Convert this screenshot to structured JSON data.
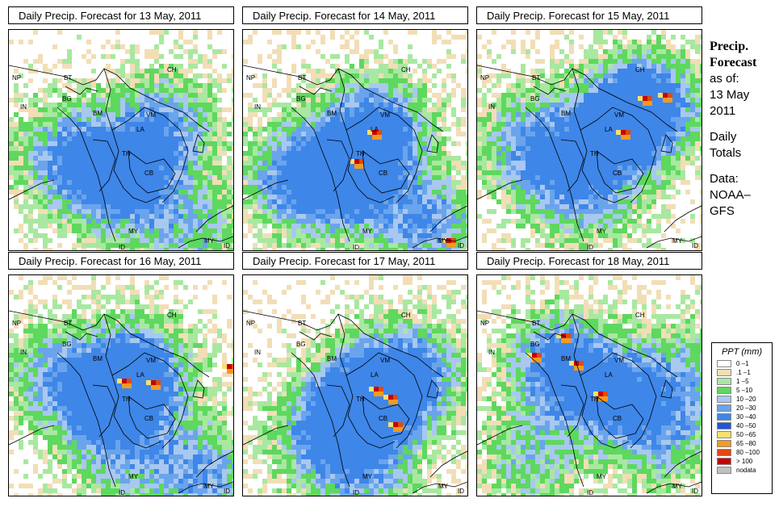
{
  "panels": [
    {
      "title": "Daily Precip. Forecast for  13 May, 2011",
      "date": "13 May, 2011"
    },
    {
      "title": "Daily Precip. Forecast for  14 May, 2011",
      "date": "14 May, 2011"
    },
    {
      "title": "Daily Precip. Forecast for  15 May, 2011",
      "date": "15 May, 2011"
    },
    {
      "title": "Daily Precip. Forecast for  16 May, 2011",
      "date": "16 May, 2011"
    },
    {
      "title": "Daily Precip. Forecast for  17 May, 2011",
      "date": "17 May, 2011"
    },
    {
      "title": "Daily Precip. Forecast for  18 May, 2011",
      "date": "18 May, 2011"
    }
  ],
  "country_labels": [
    "NP",
    "BT",
    "BG",
    "IN",
    "CH",
    "BM",
    "VM",
    "LA",
    "TH",
    "CB",
    "MY",
    "ID",
    "MY",
    "ID"
  ],
  "sidebar": {
    "heading_line1": "Precip.",
    "heading_line2": "Forecast",
    "asof_label": "as of:",
    "asof_day": "13 May",
    "asof_year": "2011",
    "totals_line1": "Daily",
    "totals_line2": "Totals",
    "source_line1": "Data:",
    "source_line2": "NOAA–",
    "source_line3": "GFS"
  },
  "legend": {
    "title": "PPT (mm)",
    "items": [
      {
        "label": "0 –1",
        "color": "#ffffff"
      },
      {
        "label": ".1 –1",
        "color": "#f2deb6"
      },
      {
        "label": "1 –5",
        "color": "#a8e8a0"
      },
      {
        "label": "5 –10",
        "color": "#5ed85e"
      },
      {
        "label": "10 –20",
        "color": "#a8c8f0"
      },
      {
        "label": "20 –30",
        "color": "#6aa4ec"
      },
      {
        "label": "30 –40",
        "color": "#3e86e8"
      },
      {
        "label": "40 –50",
        "color": "#1f58d8"
      },
      {
        "label": "50 –65",
        "color": "#f6e070"
      },
      {
        "label": "65 –80",
        "color": "#f49a20"
      },
      {
        "label": "80 –100",
        "color": "#e04a10"
      },
      {
        "label": "> 100",
        "color": "#c80000"
      },
      {
        "label": "nodata",
        "color": "#c0c0c0"
      }
    ]
  }
}
